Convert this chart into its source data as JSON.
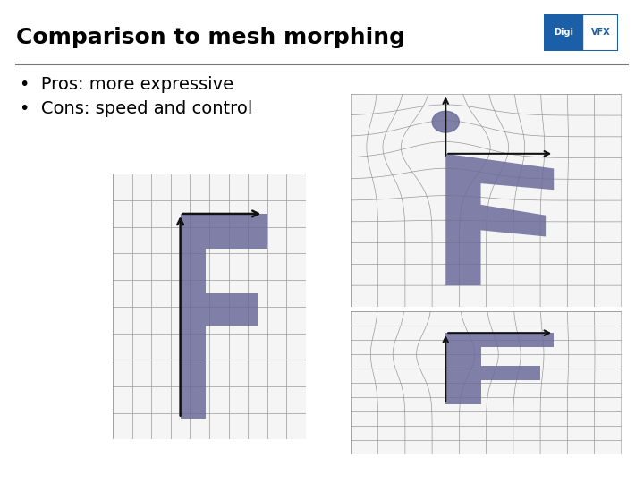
{
  "title": "Comparison to mesh morphing",
  "title_fontsize": 18,
  "title_fontweight": "bold",
  "title_color": "#000000",
  "background_color": "#ffffff",
  "bullet_points": [
    "Pros: more expressive",
    "Cons: speed and control"
  ],
  "bullet_fontsize": 14,
  "line_color": "#777777",
  "grid_color": "#999999",
  "F_color": "#6b6b9a",
  "arrow_color": "#111111",
  "logo_digi_bg": "#1a5fa8",
  "logo_border": "#1a5fa8"
}
